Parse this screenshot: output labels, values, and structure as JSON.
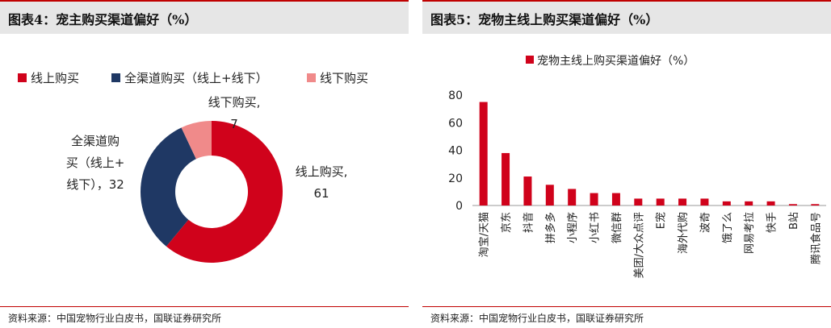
{
  "left": {
    "title": "图表4：宠主购买渠道偏好（%）",
    "source": "资料来源：中国宠物行业白皮书，国联证券研究所"
  },
  "right": {
    "title": "图表5：宠物主线上购买渠道偏好（%）",
    "source": "资料来源：中国宠物行业白皮书，国联证券研究所"
  },
  "chart_data": [
    {
      "type": "pie",
      "variant": "donut",
      "title": "",
      "legend_placement": "top",
      "slices": [
        {
          "name": "线上购买",
          "value": 61,
          "color": "#d0021b",
          "label_lines": [
            "线上购买,",
            "61"
          ]
        },
        {
          "name": "全渠道购买（线上+线下）",
          "value": 32,
          "color": "#1f3864",
          "label_lines": [
            "全渠道购",
            "买（线上+",
            "线下），32"
          ]
        },
        {
          "name": "线下购买",
          "value": 7,
          "color": "#f08a8a",
          "label_lines": [
            "线下购买,",
            "7"
          ]
        }
      ]
    },
    {
      "type": "bar",
      "title": "",
      "legend": [
        "宠物主线上购买渠道偏好（%）"
      ],
      "legend_placement": "top",
      "color": "#d0021b",
      "ylim": [
        0,
        80
      ],
      "yticks": [
        0,
        20,
        40,
        60,
        80
      ],
      "grid": false,
      "categories": [
        "淘宝/天猫",
        "京东",
        "抖音",
        "拼多多",
        "小程序",
        "小红书",
        "微信群",
        "美团/大众点评",
        "E宠",
        "海外代购",
        "波奇",
        "饿了么",
        "网易考拉",
        "快手",
        "B站",
        "腾讯食品号"
      ],
      "values": [
        75,
        38,
        21,
        15,
        12,
        9,
        9,
        5,
        5,
        5,
        5,
        3,
        3,
        3,
        1,
        1
      ]
    }
  ]
}
